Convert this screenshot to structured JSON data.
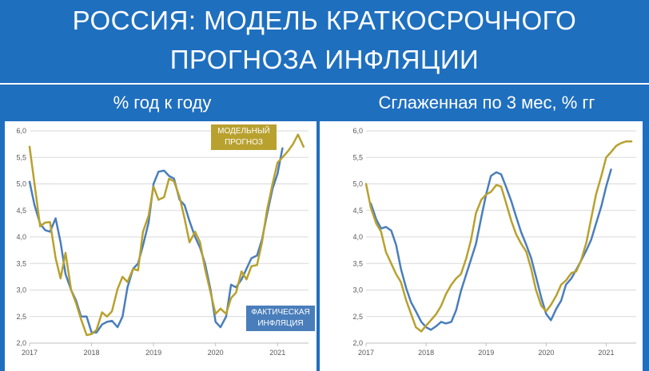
{
  "header": {
    "title_line1": "РОССИЯ: МОДЕЛЬ КРАТКОСРОЧНОГО",
    "title_line2": "ПРОГНОЗА ИНФЛЯЦИИ"
  },
  "colors": {
    "background": "#1f6fbf",
    "actual": "#4a7ebb",
    "model": "#b8a12e",
    "legend_model_bg": "#b8a12e",
    "legend_actual_bg": "#4a7ebb"
  },
  "chart_data": [
    {
      "type": "line",
      "title": "% год к году",
      "xlabel": "",
      "ylabel": "",
      "ylim": [
        2.0,
        6.0
      ],
      "yticks": [
        "2,0",
        "2,5",
        "3,0",
        "3,5",
        "4,0",
        "4,5",
        "5,0",
        "5,5",
        "6,0"
      ],
      "xticks": [
        "2017",
        "2018",
        "2019",
        "2020",
        "2021"
      ],
      "xlim": [
        2017.0,
        2021.5
      ],
      "grid": true,
      "legend": {
        "model_label_line1": "МОДЕЛЬНЫЙ",
        "model_label_line2": "ПРОГНОЗ",
        "actual_label_line1": "ФАКТИЧЕСКАЯ",
        "actual_label_line2": "ИНФЛЯЦИЯ"
      },
      "series": [
        {
          "key": "actual",
          "x": [
            2017.0,
            2017.08,
            2017.17,
            2017.25,
            2017.33,
            2017.42,
            2017.5,
            2017.58,
            2017.67,
            2017.75,
            2017.83,
            2017.92,
            2018.0,
            2018.08,
            2018.17,
            2018.25,
            2018.33,
            2018.42,
            2018.5,
            2018.58,
            2018.67,
            2018.75,
            2018.83,
            2018.92,
            2019.0,
            2019.08,
            2019.17,
            2019.25,
            2019.33,
            2019.42,
            2019.5,
            2019.58,
            2019.67,
            2019.75,
            2019.83,
            2019.92,
            2020.0,
            2020.08,
            2020.17,
            2020.25,
            2020.33,
            2020.42,
            2020.5,
            2020.58,
            2020.67,
            2020.75,
            2020.83,
            2020.92,
            2021.0,
            2021.08
          ],
          "y": [
            5.04,
            4.6,
            4.25,
            4.13,
            4.1,
            4.35,
            3.9,
            3.3,
            3.0,
            2.8,
            2.5,
            2.5,
            2.2,
            2.2,
            2.35,
            2.4,
            2.42,
            2.3,
            2.5,
            3.05,
            3.4,
            3.5,
            3.84,
            4.27,
            5.0,
            5.23,
            5.25,
            5.15,
            5.1,
            4.7,
            4.6,
            4.3,
            4.0,
            3.8,
            3.5,
            3.0,
            2.4,
            2.3,
            2.5,
            3.1,
            3.05,
            3.2,
            3.4,
            3.6,
            3.65,
            3.95,
            4.42,
            4.91,
            5.19,
            5.67
          ]
        },
        {
          "key": "model",
          "x": [
            2017.0,
            2017.08,
            2017.17,
            2017.25,
            2017.33,
            2017.42,
            2017.5,
            2017.58,
            2017.67,
            2017.75,
            2017.83,
            2017.92,
            2018.0,
            2018.08,
            2018.17,
            2018.25,
            2018.33,
            2018.42,
            2018.5,
            2018.58,
            2018.67,
            2018.75,
            2018.83,
            2018.92,
            2019.0,
            2019.08,
            2019.17,
            2019.25,
            2019.33,
            2019.42,
            2019.5,
            2019.58,
            2019.67,
            2019.75,
            2019.83,
            2019.92,
            2020.0,
            2020.08,
            2020.17,
            2020.25,
            2020.33,
            2020.42,
            2020.5,
            2020.58,
            2020.67,
            2020.75,
            2020.83,
            2020.92,
            2021.0,
            2021.08,
            2021.17,
            2021.25,
            2021.33,
            2021.42
          ],
          "y": [
            5.7,
            5.0,
            4.2,
            4.27,
            4.28,
            3.6,
            3.22,
            3.7,
            3.0,
            2.75,
            2.45,
            2.15,
            2.17,
            2.25,
            2.58,
            2.5,
            2.6,
            3.02,
            3.25,
            3.15,
            3.4,
            3.37,
            4.1,
            4.4,
            4.95,
            4.7,
            4.75,
            5.1,
            5.05,
            4.75,
            4.35,
            3.9,
            4.1,
            3.9,
            3.4,
            2.95,
            2.55,
            2.65,
            2.55,
            2.85,
            2.95,
            3.35,
            3.2,
            3.45,
            3.47,
            3.9,
            4.5,
            5.0,
            5.4,
            5.5,
            5.62,
            5.75,
            5.93,
            5.7
          ]
        }
      ]
    },
    {
      "type": "line",
      "title": "Сглаженная по 3 мес, % гг",
      "xlabel": "",
      "ylabel": "",
      "ylim": [
        2.0,
        6.0
      ],
      "yticks": [
        "2,0",
        "2,5",
        "3,0",
        "3,5",
        "4,0",
        "4,5",
        "5,0",
        "5,5",
        "6,0"
      ],
      "xticks": [
        "2017",
        "2018",
        "2019",
        "2020",
        "2021"
      ],
      "xlim": [
        2017.0,
        2021.5
      ],
      "grid": true,
      "series": [
        {
          "key": "actual",
          "x": [
            2017.08,
            2017.17,
            2017.25,
            2017.33,
            2017.42,
            2017.5,
            2017.58,
            2017.67,
            2017.75,
            2017.83,
            2017.92,
            2018.0,
            2018.08,
            2018.17,
            2018.25,
            2018.33,
            2018.42,
            2018.5,
            2018.58,
            2018.67,
            2018.75,
            2018.83,
            2018.92,
            2019.0,
            2019.08,
            2019.17,
            2019.25,
            2019.33,
            2019.42,
            2019.5,
            2019.58,
            2019.67,
            2019.75,
            2019.83,
            2019.92,
            2020.0,
            2020.08,
            2020.17,
            2020.25,
            2020.33,
            2020.42,
            2020.5,
            2020.58,
            2020.67,
            2020.75,
            2020.83,
            2020.92,
            2021.0,
            2021.08
          ],
          "y": [
            4.63,
            4.33,
            4.16,
            4.19,
            4.12,
            3.85,
            3.4,
            3.03,
            2.77,
            2.6,
            2.4,
            2.3,
            2.25,
            2.32,
            2.4,
            2.37,
            2.4,
            2.62,
            2.98,
            3.3,
            3.58,
            3.87,
            4.37,
            4.8,
            5.15,
            5.22,
            5.18,
            4.95,
            4.67,
            4.38,
            4.1,
            3.85,
            3.6,
            3.25,
            2.85,
            2.55,
            2.43,
            2.65,
            2.8,
            3.1,
            3.22,
            3.38,
            3.55,
            3.75,
            3.95,
            4.25,
            4.58,
            4.95,
            5.27
          ]
        },
        {
          "key": "model",
          "x": [
            2017.0,
            2017.08,
            2017.17,
            2017.25,
            2017.33,
            2017.42,
            2017.5,
            2017.58,
            2017.67,
            2017.75,
            2017.83,
            2017.92,
            2018.0,
            2018.08,
            2018.17,
            2018.25,
            2018.33,
            2018.42,
            2018.5,
            2018.58,
            2018.67,
            2018.75,
            2018.83,
            2018.92,
            2019.0,
            2019.08,
            2019.17,
            2019.25,
            2019.33,
            2019.42,
            2019.5,
            2019.58,
            2019.67,
            2019.75,
            2019.83,
            2019.92,
            2020.0,
            2020.08,
            2020.17,
            2020.25,
            2020.33,
            2020.42,
            2020.5,
            2020.58,
            2020.67,
            2020.75,
            2020.83,
            2020.92,
            2021.0,
            2021.08,
            2021.17,
            2021.25,
            2021.33,
            2021.42
          ],
          "y": [
            5.0,
            4.55,
            4.25,
            4.1,
            3.72,
            3.5,
            3.3,
            3.15,
            2.8,
            2.55,
            2.3,
            2.22,
            2.33,
            2.43,
            2.55,
            2.7,
            2.92,
            3.1,
            3.22,
            3.3,
            3.6,
            3.95,
            4.45,
            4.7,
            4.8,
            4.85,
            4.98,
            4.95,
            4.65,
            4.3,
            4.05,
            3.88,
            3.72,
            3.4,
            3.0,
            2.7,
            2.6,
            2.72,
            2.9,
            3.1,
            3.18,
            3.32,
            3.35,
            3.55,
            3.9,
            4.35,
            4.8,
            5.15,
            5.5,
            5.6,
            5.72,
            5.77,
            5.8,
            5.8
          ]
        }
      ]
    }
  ]
}
